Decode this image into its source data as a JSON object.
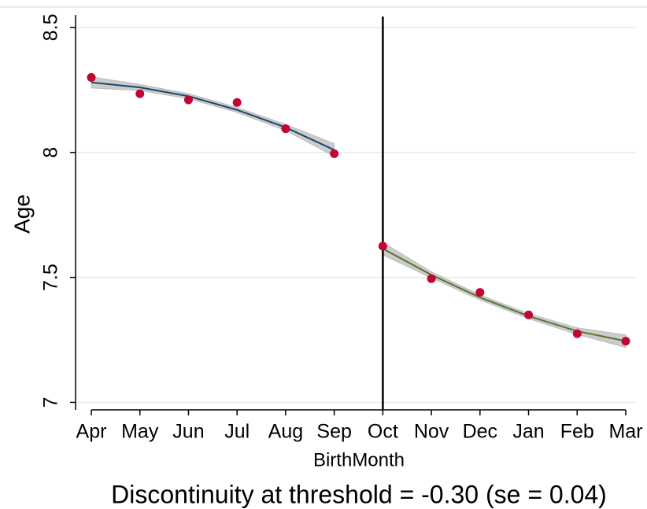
{
  "chart_data": {
    "type": "scatter",
    "x_label": "BirthMonth",
    "y_label": "Age",
    "note": "Discontinuity at threshold = -0.30 (se = 0.04)",
    "categories": [
      "Apr",
      "May",
      "Jun",
      "Jul",
      "Aug",
      "Sep",
      "Oct",
      "Nov",
      "Dec",
      "Jan",
      "Feb",
      "Mar"
    ],
    "ylim": [
      6.97,
      8.55
    ],
    "yticks": [
      7,
      7.5,
      8,
      8.5
    ],
    "grid": true,
    "vline": "Oct",
    "series": [
      {
        "color": "#c10534",
        "values": [
          8.3,
          8.235,
          8.21,
          8.2,
          8.095,
          7.995,
          7.625,
          7.495,
          7.44,
          7.35,
          7.275,
          7.245
        ]
      }
    ],
    "fits": [
      {
        "color": "#1a476f",
        "values": [
          8.28,
          8.26,
          8.225,
          8.17,
          8.1,
          8.01,
          null,
          null,
          null,
          null,
          null,
          null
        ],
        "ci_lower": [
          8.258,
          8.248,
          8.215,
          8.16,
          8.088,
          7.985,
          null,
          null,
          null,
          null,
          null,
          null
        ],
        "ci_upper": [
          8.302,
          8.272,
          8.235,
          8.18,
          8.112,
          8.035,
          null,
          null,
          null,
          null,
          null,
          null
        ]
      },
      {
        "color": "#55752f",
        "values": [
          null,
          null,
          null,
          null,
          null,
          null,
          7.615,
          7.51,
          7.42,
          7.345,
          7.285,
          7.245
        ],
        "ci_lower": [
          null,
          null,
          null,
          null,
          null,
          null,
          7.59,
          7.498,
          7.41,
          7.335,
          7.272,
          7.22
        ],
        "ci_upper": [
          null,
          null,
          null,
          null,
          null,
          null,
          7.64,
          7.522,
          7.43,
          7.355,
          7.298,
          7.27
        ]
      }
    ]
  }
}
